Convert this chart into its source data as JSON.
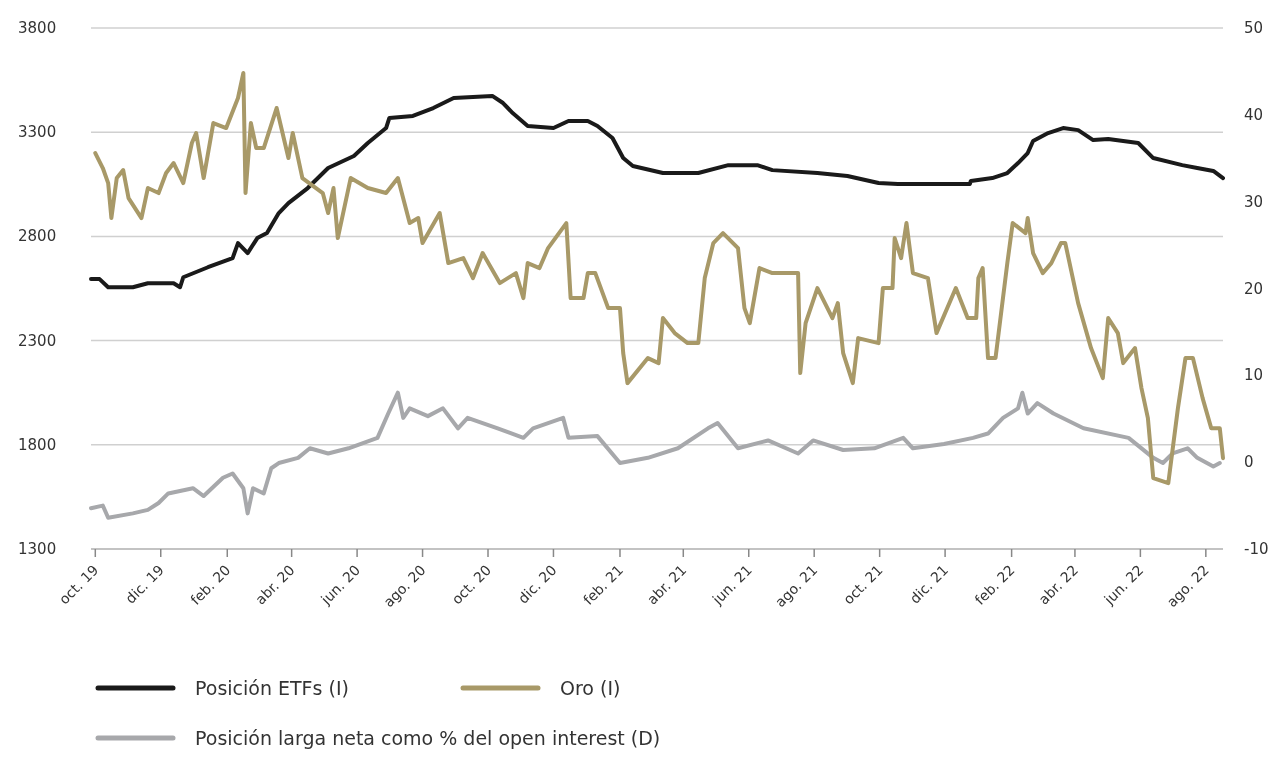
{
  "chart_data": {
    "type": "line",
    "legend": "bottom",
    "grid": "y",
    "line_style": "solid",
    "marker": "none",
    "xlim": [
      "2019-09-27",
      "2022-08-17"
    ],
    "xticks": [
      {
        "value": "2019-10-01",
        "label": "oct. 19"
      },
      {
        "value": "2019-12-01",
        "label": "dic. 19"
      },
      {
        "value": "2020-02-01",
        "label": "feb. 20"
      },
      {
        "value": "2020-04-01",
        "label": "abr. 20"
      },
      {
        "value": "2020-06-01",
        "label": "jun. 20"
      },
      {
        "value": "2020-08-01",
        "label": "ago. 20"
      },
      {
        "value": "2020-10-01",
        "label": "oct. 20"
      },
      {
        "value": "2020-12-01",
        "label": "dic. 20"
      },
      {
        "value": "2021-02-01",
        "label": "feb. 21"
      },
      {
        "value": "2021-04-01",
        "label": "abr. 21"
      },
      {
        "value": "2021-06-01",
        "label": "jun. 21"
      },
      {
        "value": "2021-08-01",
        "label": "ago. 21"
      },
      {
        "value": "2021-10-01",
        "label": "oct. 21"
      },
      {
        "value": "2021-12-01",
        "label": "dic. 21"
      },
      {
        "value": "2022-02-01",
        "label": "feb. 22"
      },
      {
        "value": "2022-04-01",
        "label": "abr. 22"
      },
      {
        "value": "2022-06-01",
        "label": "jun. 22"
      },
      {
        "value": "2022-08-01",
        "label": "ago. 22"
      }
    ],
    "ylim": [
      1300,
      3800
    ],
    "yticks": [
      1300,
      1800,
      2300,
      2800,
      3300,
      3800
    ],
    "y2lim": [
      -10,
      50
    ],
    "y2ticks": [
      -10,
      0,
      10,
      20,
      30,
      40,
      50
    ],
    "series": [
      {
        "name": "Posición larga neta como % del open interest (D)",
        "color": "#a7a8ab",
        "axis": "y2",
        "x": [
          "2019-09-27",
          "2019-10-08",
          "2019-10-13",
          "2019-11-05",
          "2019-11-19",
          "2019-11-29",
          "2019-12-08",
          "2019-12-31",
          "2020-01-10",
          "2020-01-28",
          "2020-02-06",
          "2020-02-16",
          "2020-02-20",
          "2020-02-25",
          "2020-03-06",
          "2020-03-13",
          "2020-03-20",
          "2020-04-07",
          "2020-04-18",
          "2020-05-05",
          "2020-05-24",
          "2020-06-20",
          "2020-06-30",
          "2020-07-09",
          "2020-07-14",
          "2020-07-20",
          "2020-08-06",
          "2020-08-20",
          "2020-09-03",
          "2020-09-12",
          "2020-10-10",
          "2020-11-03",
          "2020-11-12",
          "2020-12-10",
          "2020-12-15",
          "2021-01-11",
          "2021-02-01",
          "2021-02-27",
          "2021-03-27",
          "2021-04-24",
          "2021-05-03",
          "2021-05-22",
          "2021-06-19",
          "2021-07-17",
          "2021-07-31",
          "2021-08-28",
          "2021-09-26",
          "2021-10-23",
          "2021-11-01",
          "2021-11-30",
          "2021-12-27",
          "2022-01-10",
          "2022-01-24",
          "2022-02-07",
          "2022-02-11",
          "2022-02-16",
          "2022-02-25",
          "2022-03-12",
          "2022-04-09",
          "2022-05-21",
          "2022-06-13",
          "2022-06-22",
          "2022-07-01",
          "2022-07-15",
          "2022-07-24",
          "2022-08-08",
          "2022-08-14"
        ],
        "values": [
          -5.3,
          -5,
          -6.4,
          -5.9,
          -5.5,
          -4.7,
          -3.6,
          -3,
          -3.9,
          -1.8,
          -1.3,
          -3,
          -5.9,
          -3,
          -3.6,
          -0.7,
          -0.1,
          0.5,
          1.6,
          1,
          1.6,
          2.8,
          5.6,
          8,
          5.1,
          6.2,
          5.3,
          6.2,
          3.9,
          5.1,
          3.9,
          2.8,
          3.9,
          5.1,
          2.8,
          3,
          -0.1,
          0.5,
          1.6,
          3.9,
          4.5,
          1.6,
          2.5,
          1,
          2.5,
          1.4,
          1.6,
          2.8,
          1.6,
          2.1,
          2.8,
          3.3,
          5.1,
          6.2,
          8,
          5.6,
          6.8,
          5.6,
          3.9,
          2.8,
          0.5,
          -0.1,
          1,
          1.6,
          0.5,
          -0.5,
          -0.1
        ]
      },
      {
        "name": "Posición ETFs (I)",
        "color": "#1a1a1a",
        "x": [
          "2019-09-27",
          "2019-10-05",
          "2019-10-13",
          "2019-11-05",
          "2019-11-19",
          "2019-12-13",
          "2019-12-19",
          "2019-12-22",
          "2020-01-14",
          "2020-02-06",
          "2020-02-11",
          "2020-02-20",
          "2020-02-29",
          "2020-03-09",
          "2020-03-20",
          "2020-03-29",
          "2020-04-16",
          "2020-05-05",
          "2020-05-29",
          "2020-06-11",
          "2020-06-28",
          "2020-07-01",
          "2020-07-23",
          "2020-08-11",
          "2020-08-30",
          "2020-10-05",
          "2020-10-15",
          "2020-10-24",
          "2020-11-07",
          "2020-12-01",
          "2020-12-15",
          "2021-01-02",
          "2021-01-11",
          "2021-01-25",
          "2021-02-04",
          "2021-02-13",
          "2021-03-13",
          "2021-04-15",
          "2021-05-13",
          "2021-06-09",
          "2021-06-23",
          "2021-08-04",
          "2021-09-01",
          "2021-09-30",
          "2021-10-18",
          "2021-11-15",
          "2021-12-24",
          "2021-12-25",
          "2022-01-14",
          "2022-01-28",
          "2022-02-07",
          "2022-02-16",
          "2022-02-21",
          "2022-03-07",
          "2022-03-21",
          "2022-04-04",
          "2022-04-18",
          "2022-05-02",
          "2022-05-30",
          "2022-06-13",
          "2022-07-10",
          "2022-07-24",
          "2022-08-08",
          "2022-08-17"
        ],
        "values": [
          2595,
          2595,
          2556,
          2556,
          2575,
          2575,
          2556,
          2604,
          2652,
          2696,
          2768,
          2720,
          2792,
          2816,
          2912,
          2960,
          3032,
          3128,
          3186,
          3248,
          3320,
          3368,
          3378,
          3416,
          3464,
          3474,
          3440,
          3392,
          3330,
          3320,
          3354,
          3354,
          3330,
          3272,
          3176,
          3138,
          3104,
          3104,
          3142,
          3142,
          3118,
          3104,
          3090,
          3056,
          3051,
          3051,
          3051,
          3066,
          3080,
          3104,
          3152,
          3200,
          3258,
          3296,
          3320,
          3310,
          3262,
          3267,
          3248,
          3176,
          3142,
          3128,
          3114,
          3080
        ]
      },
      {
        "name": "Oro (I)",
        "color": "#a89968",
        "x": [
          "2019-10-01",
          "2019-10-08",
          "2019-10-13",
          "2019-10-16",
          "2019-10-21",
          "2019-10-27",
          "2019-11-01",
          "2019-11-13",
          "2019-11-19",
          "2019-11-29",
          "2019-12-06",
          "2019-12-13",
          "2019-12-22",
          "2019-12-30",
          "2020-01-03",
          "2020-01-10",
          "2020-01-19",
          "2020-01-31",
          "2020-02-11",
          "2020-02-16",
          "2020-02-18",
          "2020-02-23",
          "2020-02-28",
          "2020-03-06",
          "2020-03-18",
          "2020-03-29",
          "2020-04-02",
          "2020-04-11",
          "2020-04-30",
          "2020-05-05",
          "2020-05-10",
          "2020-05-14",
          "2020-05-26",
          "2020-06-11",
          "2020-06-28",
          "2020-07-09",
          "2020-07-20",
          "2020-07-28",
          "2020-08-01",
          "2020-08-17",
          "2020-08-25",
          "2020-09-08",
          "2020-09-17",
          "2020-09-26",
          "2020-10-12",
          "2020-10-27",
          "2020-11-03",
          "2020-11-07",
          "2020-11-18",
          "2020-11-26",
          "2020-12-13",
          "2020-12-17",
          "2020-12-29",
          "2021-01-02",
          "2021-01-09",
          "2021-01-21",
          "2021-02-01",
          "2021-02-04",
          "2021-02-08",
          "2021-02-27",
          "2021-03-09",
          "2021-03-13",
          "2021-03-24",
          "2021-04-05",
          "2021-04-15",
          "2021-04-21",
          "2021-04-29",
          "2021-05-08",
          "2021-05-22",
          "2021-05-28",
          "2021-06-02",
          "2021-06-11",
          "2021-06-23",
          "2021-07-17",
          "2021-07-19",
          "2021-07-24",
          "2021-08-04",
          "2021-08-18",
          "2021-08-23",
          "2021-08-28",
          "2021-09-06",
          "2021-09-11",
          "2021-09-30",
          "2021-10-04",
          "2021-10-13",
          "2021-10-15",
          "2021-10-21",
          "2021-10-26",
          "2021-11-01",
          "2021-11-15",
          "2021-11-23",
          "2021-12-11",
          "2021-12-22",
          "2021-12-30",
          "2022-01-01",
          "2022-01-05",
          "2022-01-10",
          "2022-01-17",
          "2022-01-28",
          "2022-02-02",
          "2022-02-14",
          "2022-02-16",
          "2022-02-21",
          "2022-03-02",
          "2022-03-10",
          "2022-03-19",
          "2022-03-23",
          "2022-04-04",
          "2022-04-16",
          "2022-04-27",
          "2022-05-02",
          "2022-05-11",
          "2022-05-16",
          "2022-05-27",
          "2022-06-02",
          "2022-06-08",
          "2022-06-13",
          "2022-06-27",
          "2022-07-06",
          "2022-07-13",
          "2022-07-20",
          "2022-07-29",
          "2022-08-06",
          "2022-08-14",
          "2022-08-17"
        ],
        "values": [
          3200,
          3128,
          3056,
          2888,
          3080,
          3118,
          2984,
          2888,
          3032,
          3008,
          3104,
          3152,
          3056,
          3248,
          3296,
          3080,
          3344,
          3320,
          3464,
          3584,
          3008,
          3344,
          3224,
          3224,
          3416,
          3176,
          3296,
          3080,
          3008,
          2912,
          3032,
          2792,
          3080,
          3032,
          3008,
          3080,
          2864,
          2888,
          2768,
          2912,
          2672,
          2696,
          2600,
          2720,
          2576,
          2624,
          2504,
          2672,
          2648,
          2744,
          2864,
          2504,
          2504,
          2624,
          2624,
          2456,
          2456,
          2240,
          2096,
          2216,
          2192,
          2408,
          2336,
          2288,
          2288,
          2600,
          2768,
          2816,
          2744,
          2456,
          2384,
          2648,
          2624,
          2624,
          2144,
          2384,
          2552,
          2408,
          2480,
          2240,
          2096,
          2312,
          2288,
          2552,
          2552,
          2792,
          2696,
          2864,
          2624,
          2600,
          2336,
          2552,
          2408,
          2408,
          2600,
          2648,
          2216,
          2216,
          2672,
          2864,
          2816,
          2888,
          2720,
          2624,
          2672,
          2768,
          2768,
          2480,
          2264,
          2120,
          2408,
          2336,
          2192,
          2264,
          2072,
          1928,
          1640,
          1616,
          1976,
          2216,
          2216,
          2024,
          1880,
          1880,
          1736
        ]
      }
    ]
  }
}
